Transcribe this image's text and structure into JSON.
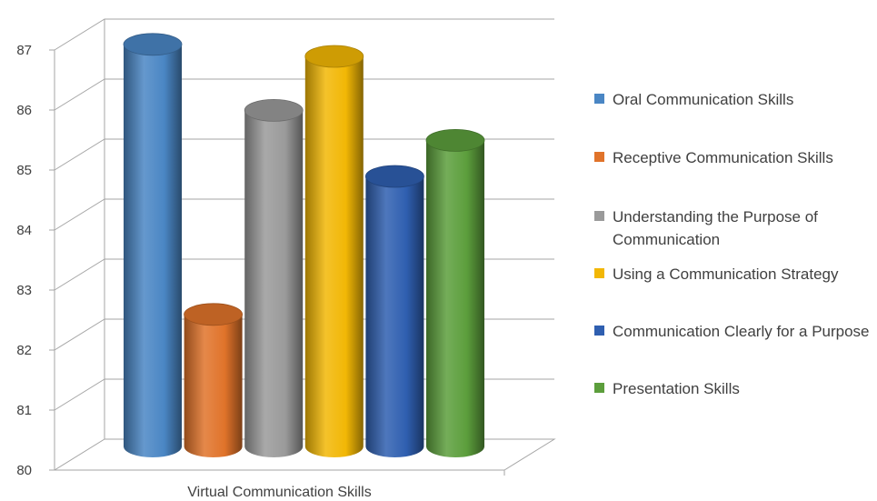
{
  "chart_data": {
    "type": "bar",
    "categories": [
      "Virtual Communication Skills"
    ],
    "series": [
      {
        "name": "Oral Communication Skills",
        "values": [
          86.7
        ],
        "color": "#4a86c4"
      },
      {
        "name": "Receptive Communication Skills",
        "values": [
          82.2
        ],
        "color": "#e0732a"
      },
      {
        "name": "Understanding the Purpose of Communication",
        "values": [
          85.6
        ],
        "color": "#9a9a9a"
      },
      {
        "name": "Using a Communication Strategy",
        "values": [
          86.5
        ],
        "color": "#f2b705"
      },
      {
        "name": "Communication Clearly for a Purpose",
        "values": [
          84.5
        ],
        "color": "#2f5fb0"
      },
      {
        "name": "Presentation Skills",
        "values": [
          85.1
        ],
        "color": "#5c9e3c"
      }
    ],
    "yticks": [
      "80",
      "81",
      "82",
      "83",
      "84",
      "85",
      "86",
      "87"
    ],
    "ylim": [
      80,
      87
    ],
    "title": "",
    "xlabel": "",
    "ylabel": "",
    "grid": true,
    "legend_position": "right",
    "style": "3d-cylinder"
  }
}
